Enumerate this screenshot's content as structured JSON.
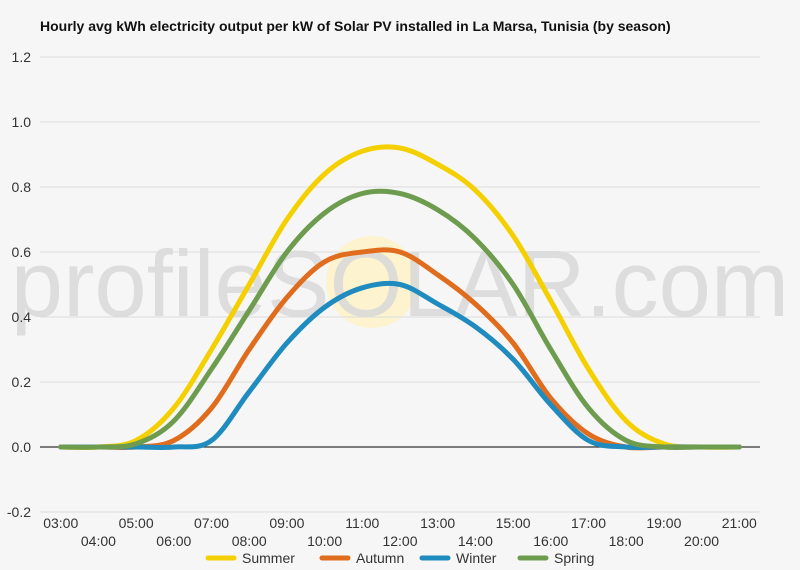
{
  "chart_data": {
    "type": "line",
    "title": "Hourly avg kWh electricity output per kW of Solar PV installed in La Marsa, Tunisia (by season)",
    "xlabel": "",
    "ylabel": "",
    "ylim": [
      -0.2,
      1.2
    ],
    "y_ticks": [
      "1.2",
      "1.0",
      "0.8",
      "0.6",
      "0.4",
      "0.2",
      "0.0",
      "-0.2"
    ],
    "y_tick_values": [
      1.2,
      1.0,
      0.8,
      0.6,
      0.4,
      0.2,
      0.0,
      -0.2
    ],
    "x_ticks": [
      "03:00",
      "04:00",
      "05:00",
      "06:00",
      "07:00",
      "08:00",
      "09:00",
      "10:00",
      "11:00",
      "12:00",
      "13:00",
      "14:00",
      "15:00",
      "16:00",
      "17:00",
      "18:00",
      "19:00",
      "20:00",
      "21:00"
    ],
    "x": [
      3,
      4,
      5,
      6,
      7,
      8,
      9,
      10,
      11,
      12,
      13,
      14,
      15,
      16,
      17,
      18,
      19,
      20,
      21
    ],
    "grid": true,
    "legend_position": "bottom",
    "watermark": "profileSOLAR.com",
    "series": [
      {
        "name": "Summer",
        "color": "#f5d000",
        "values": [
          0.0,
          0.0,
          0.02,
          0.12,
          0.3,
          0.5,
          0.7,
          0.84,
          0.91,
          0.92,
          0.87,
          0.79,
          0.65,
          0.45,
          0.24,
          0.08,
          0.01,
          0.0,
          0.0
        ]
      },
      {
        "name": "Autumn",
        "color": "#e06c1e",
        "values": [
          0.0,
          0.0,
          0.0,
          0.02,
          0.12,
          0.3,
          0.46,
          0.57,
          0.6,
          0.6,
          0.53,
          0.44,
          0.32,
          0.15,
          0.04,
          0.0,
          0.0,
          0.0,
          0.0
        ]
      },
      {
        "name": "Winter",
        "color": "#1f8bbf",
        "values": [
          0.0,
          0.0,
          0.0,
          0.0,
          0.02,
          0.17,
          0.32,
          0.43,
          0.49,
          0.5,
          0.44,
          0.37,
          0.27,
          0.13,
          0.02,
          0.0,
          0.0,
          0.0,
          0.0
        ]
      },
      {
        "name": "Spring",
        "color": "#6e9c4e",
        "values": [
          0.0,
          0.0,
          0.01,
          0.08,
          0.24,
          0.42,
          0.6,
          0.72,
          0.78,
          0.78,
          0.73,
          0.64,
          0.5,
          0.3,
          0.12,
          0.02,
          0.0,
          0.0,
          0.0
        ]
      }
    ]
  }
}
